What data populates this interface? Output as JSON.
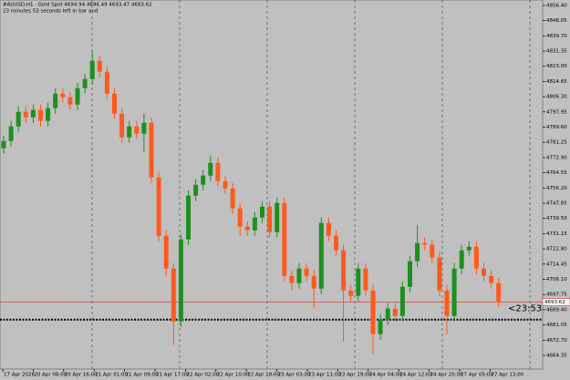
{
  "chart_data": {
    "type": "candlestick",
    "title": "#AUUSD,H1 · Gold Spot 4694.94 4696.49 4693.47 4693.62",
    "subtitle": "23 minutes 53 seconds left in bar and",
    "time_labels": [
      "17 Apr 2026",
      "20 Apr 08:00",
      "20 Apr 16:00",
      "21 Apr 01:00",
      "21 Apr 09:00",
      "21 Apr 17:00",
      "22 Apr 02:00",
      "22 Apr 10:00",
      "22 Apr 18:00",
      "23 Apr 03:00",
      "23 Apr 11:00",
      "23 Apr 19:00",
      "24 Apr 04:00",
      "24 Apr 12:00",
      "24 Apr 20:00",
      "27 Apr 05:00",
      "27 Apr 13:00"
    ],
    "open": [
      4778,
      4782,
      4790,
      4798,
      4795,
      4799,
      4793,
      4800,
      4808,
      4806,
      4802,
      4811,
      4816,
      4826,
      4820,
      4808,
      4797,
      4784,
      4790,
      4786,
      4792,
      4762,
      4730,
      4712,
      4683,
      4728,
      4752,
      4758,
      4763,
      4770,
      4760,
      4756,
      4745,
      4735,
      4733,
      4740,
      4746,
      4732,
      4748,
      4708,
      4704,
      4712,
      4708,
      4701,
      4737,
      4730,
      4722,
      4700,
      4697,
      4712,
      4700,
      4676,
      4684,
      4690,
      4686,
      4702,
      4716,
      4726,
      4725,
      4718,
      4700,
      4686,
      4712,
      4722,
      4724,
      4712,
      4708,
      4704
    ],
    "high": [
      4785,
      4793,
      4801,
      4801,
      4802,
      4802,
      4803,
      4811,
      4811,
      4809,
      4814,
      4819,
      4831,
      4829,
      4823,
      4811,
      4800,
      4793,
      4793,
      4797,
      4795,
      4765,
      4733,
      4715,
      4731,
      4755,
      4761,
      4766,
      4774,
      4773,
      4763,
      4759,
      4748,
      4738,
      4743,
      4749,
      4749,
      4751,
      4751,
      4711,
      4715,
      4715,
      4711,
      4740,
      4740,
      4733,
      4725,
      4703,
      4715,
      4715,
      4703,
      4687,
      4693,
      4693,
      4705,
      4719,
      4736,
      4729,
      4728,
      4721,
      4703,
      4715,
      4725,
      4727,
      4727,
      4715,
      4711,
      4707
    ],
    "low": [
      4775,
      4779,
      4787,
      4792,
      4792,
      4790,
      4790,
      4797,
      4803,
      4799,
      4799,
      4808,
      4813,
      4817,
      4805,
      4794,
      4781,
      4781,
      4783,
      4776,
      4759,
      4727,
      4708,
      4670,
      4680,
      4725,
      4749,
      4755,
      4760,
      4757,
      4753,
      4742,
      4730,
      4730,
      4730,
      4737,
      4729,
      4729,
      4705,
      4700,
      4701,
      4705,
      4690,
      4698,
      4727,
      4719,
      4672,
      4694,
      4694,
      4697,
      4665,
      4673,
      4681,
      4683,
      4683,
      4699,
      4713,
      4722,
      4715,
      4697,
      4676,
      4683,
      4709,
      4719,
      4709,
      4705,
      4701,
      4691
    ],
    "close": [
      4782,
      4790,
      4798,
      4795,
      4799,
      4793,
      4800,
      4808,
      4806,
      4802,
      4811,
      4816,
      4826,
      4820,
      4808,
      4797,
      4784,
      4790,
      4786,
      4792,
      4762,
      4730,
      4712,
      4683,
      4728,
      4752,
      4758,
      4763,
      4770,
      4760,
      4756,
      4745,
      4735,
      4733,
      4740,
      4746,
      4732,
      4748,
      4708,
      4704,
      4712,
      4708,
      4701,
      4737,
      4730,
      4722,
      4700,
      4697,
      4712,
      4700,
      4676,
      4684,
      4690,
      4686,
      4702,
      4716,
      4726,
      4725,
      4718,
      4700,
      4686,
      4712,
      4722,
      4724,
      4712,
      4708,
      4704,
      4694
    ],
    "ylim": [
      4656.85,
      4859.35
    ],
    "yticks": [
      4664.35,
      {
        "value": 4672.7,
        "label": "4672.70"
      },
      4681.05,
      {
        "value": 4689.4,
        "label": "4689.40"
      },
      4697.75,
      {
        "value": 4706.1,
        "label": "4706.10"
      },
      4714.45,
      {
        "value": 4722.8,
        "label": "4722.80"
      },
      4731.15,
      {
        "value": 4739.5,
        "label": "4739.50"
      },
      4747.85,
      {
        "value": 4756.2,
        "label": "4756.20"
      },
      4764.55,
      {
        "value": 4772.9,
        "label": "4772.90"
      },
      4781.25,
      {
        "value": 4789.6,
        "label": "4789.60"
      },
      4797.95,
      {
        "value": 4806.3,
        "label": "4806.30"
      },
      4814.65,
      {
        "value": 4823,
        "label": "4823.00"
      },
      4831.35,
      {
        "value": 4839.7,
        "label": "4839.70"
      },
      4848.05,
      {
        "value": 4856.4,
        "label": "4856.40"
      }
    ],
    "bid": {
      "value": 4693.62,
      "label": "4693.62"
    },
    "hline": 4684,
    "countdown": "<23:53",
    "up_color": "#1f8f1f",
    "down_color": "#ff5a1e",
    "bid_color": "#d03030"
  }
}
